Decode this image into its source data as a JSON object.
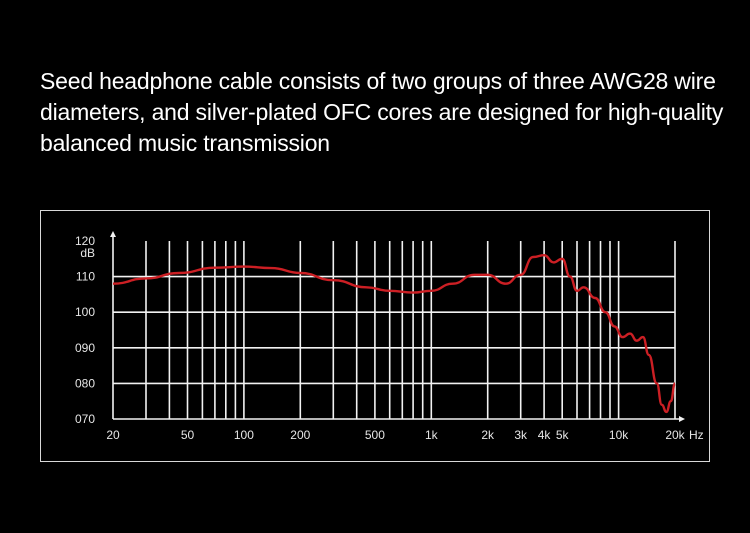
{
  "headline": "Seed headphone cable consists of two groups of three AWG28 wire diameters, and silver-plated OFC cores are designed for high-quality balanced music transmission",
  "chart_data": {
    "type": "line",
    "x_scale": "log",
    "xlim": [
      20,
      20000
    ],
    "ylim": [
      70,
      120
    ],
    "grid": true,
    "x_unit_label": "Hz",
    "y_unit_label": "dB",
    "x_ticks": [
      {
        "v": 20,
        "label": "20"
      },
      {
        "v": 50,
        "label": "50"
      },
      {
        "v": 100,
        "label": "100"
      },
      {
        "v": 200,
        "label": "200"
      },
      {
        "v": 500,
        "label": "500"
      },
      {
        "v": 1000,
        "label": "1k"
      },
      {
        "v": 2000,
        "label": "2k"
      },
      {
        "v": 3000,
        "label": "3k"
      },
      {
        "v": 4000,
        "label": "4k"
      },
      {
        "v": 5000,
        "label": "5k"
      },
      {
        "v": 10000,
        "label": "10k"
      },
      {
        "v": 20000,
        "label": "20k"
      }
    ],
    "y_ticks": [
      {
        "v": 120,
        "label": "120"
      },
      {
        "v": 110,
        "label": "110"
      },
      {
        "v": 100,
        "label": "100"
      },
      {
        "v": 90,
        "label": "090"
      },
      {
        "v": 80,
        "label": "080"
      },
      {
        "v": 70,
        "label": "070"
      }
    ],
    "grid_x": [
      30,
      40,
      50,
      60,
      70,
      80,
      90,
      100,
      200,
      300,
      400,
      500,
      600,
      700,
      800,
      900,
      1000,
      2000,
      3000,
      4000,
      5000,
      6000,
      7000,
      8000,
      9000,
      10000,
      20000
    ],
    "grid_y": [
      110,
      100,
      90,
      80
    ],
    "series": [
      {
        "color": "#cc1f24",
        "x": [
          20,
          30,
          45,
          70,
          100,
          140,
          200,
          300,
          450,
          600,
          800,
          1000,
          1300,
          1700,
          2000,
          2500,
          3000,
          3500,
          4000,
          4500,
          5000,
          5500,
          6000,
          6500,
          7500,
          8500,
          9500,
          10500,
          11500,
          12500,
          13500,
          14500,
          16000,
          17000,
          18000,
          19000,
          20000
        ],
        "y": [
          108,
          109.5,
          111,
          112.5,
          112.8,
          112.4,
          111,
          109,
          107,
          106,
          105.5,
          106,
          108,
          110.5,
          110.5,
          108,
          110.5,
          115.5,
          116,
          114,
          115,
          110,
          106,
          107,
          104,
          100,
          96,
          93,
          94,
          92,
          93,
          88,
          80,
          74,
          72,
          75,
          80
        ]
      }
    ]
  }
}
